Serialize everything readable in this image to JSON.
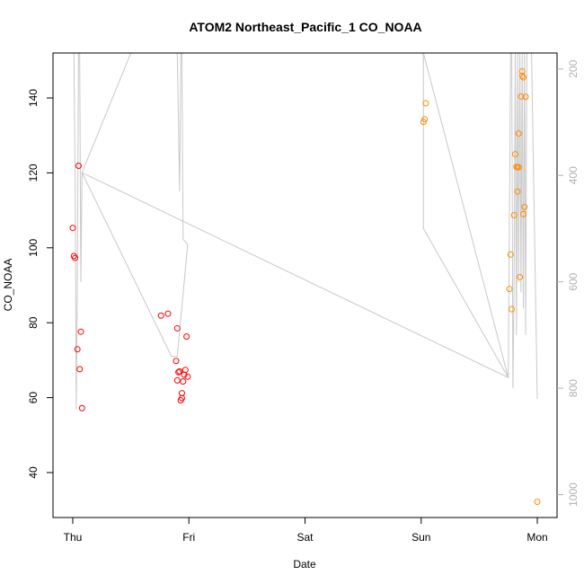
{
  "chart_data": {
    "type": "scatter",
    "title": "ATOM2 Northeast_Pacific_1 CO_NOAA",
    "xlabel": "Date",
    "ylabel": "CO_NOAA",
    "x_ticks": [
      "Thu",
      "Fri",
      "Sat",
      "Sun",
      "Mon"
    ],
    "x_range_days": [
      -0.17,
      4.17
    ],
    "ylim": [
      28,
      152
    ],
    "y_ticks": [
      40,
      60,
      80,
      100,
      120,
      140
    ],
    "y2_ticks": [
      200,
      400,
      600,
      800,
      1000
    ],
    "y2lim": [
      1043,
      170
    ],
    "y2_reversed": true,
    "colors": {
      "series_early": "#ff0000",
      "series_late": "#ff8c00",
      "line": "#c8c8c8",
      "axis": "#000000",
      "right_axis": "#b0b0b0"
    },
    "series": [
      {
        "color_key": "series_early",
        "points": [
          [
            0.0,
            105.3
          ],
          [
            0.01,
            97.8
          ],
          [
            0.02,
            97.3
          ],
          [
            0.04,
            72.9
          ],
          [
            0.05,
            121.9
          ],
          [
            0.06,
            67.6
          ],
          [
            0.07,
            77.6
          ],
          [
            0.08,
            57.2
          ],
          [
            0.76,
            81.9
          ],
          [
            0.82,
            82.4
          ],
          [
            0.89,
            69.8
          ],
          [
            0.9,
            78.5
          ],
          [
            0.9,
            64.6
          ],
          [
            0.91,
            66.8
          ],
          [
            0.92,
            67.0
          ],
          [
            0.93,
            59.3
          ],
          [
            0.94,
            59.9
          ],
          [
            0.94,
            61.2
          ],
          [
            0.95,
            64.3
          ],
          [
            0.96,
            66.1
          ],
          [
            0.97,
            67.4
          ],
          [
            0.98,
            76.3
          ],
          [
            0.99,
            65.6
          ]
        ]
      },
      {
        "color_key": "series_late",
        "points": [
          [
            3.02,
            133.6
          ],
          [
            3.03,
            134.3
          ],
          [
            3.04,
            138.6
          ],
          [
            3.76,
            89.0
          ],
          [
            3.77,
            98.2
          ],
          [
            3.78,
            83.6
          ],
          [
            3.8,
            108.7
          ],
          [
            3.81,
            125.0
          ],
          [
            3.82,
            121.6
          ],
          [
            3.83,
            121.5
          ],
          [
            3.83,
            115.0
          ],
          [
            3.84,
            121.5
          ],
          [
            3.84,
            130.5
          ],
          [
            3.85,
            92.2
          ],
          [
            3.86,
            140.4
          ],
          [
            3.87,
            147.1
          ],
          [
            3.87,
            145.9
          ],
          [
            3.88,
            145.5
          ],
          [
            3.88,
            109.0
          ],
          [
            3.89,
            110.9
          ],
          [
            3.9,
            140.3
          ],
          [
            4.0,
            32.2
          ]
        ]
      }
    ],
    "pressure_line": [
      [
        0.01,
        170
      ],
      [
        0.02,
        400
      ],
      [
        0.03,
        840
      ],
      [
        0.04,
        600
      ],
      [
        0.05,
        170
      ],
      [
        0.06,
        170
      ],
      [
        0.07,
        600
      ],
      [
        0.08,
        395
      ],
      [
        0.5,
        170
      ],
      [
        0.9,
        170
      ],
      [
        0.92,
        430
      ],
      [
        0.93,
        170
      ],
      [
        0.94,
        170
      ],
      [
        0.95,
        520
      ],
      [
        0.99,
        530
      ],
      [
        0.9,
        740
      ],
      [
        0.85,
        740
      ],
      [
        0.08,
        395
      ],
      [
        3.75,
        780
      ],
      [
        3.02,
        500
      ],
      [
        3.02,
        170
      ],
      [
        3.75,
        780
      ],
      [
        3.77,
        170
      ],
      [
        3.78,
        170
      ],
      [
        3.79,
        800
      ],
      [
        3.8,
        600
      ],
      [
        3.81,
        170
      ],
      [
        3.82,
        700
      ],
      [
        3.83,
        170
      ],
      [
        3.84,
        600
      ],
      [
        3.85,
        170
      ],
      [
        3.86,
        620
      ],
      [
        3.87,
        170
      ],
      [
        3.88,
        650
      ],
      [
        3.89,
        170
      ],
      [
        3.9,
        700
      ],
      [
        3.91,
        170
      ],
      [
        3.95,
        170
      ],
      [
        4.0,
        820
      ]
    ]
  }
}
